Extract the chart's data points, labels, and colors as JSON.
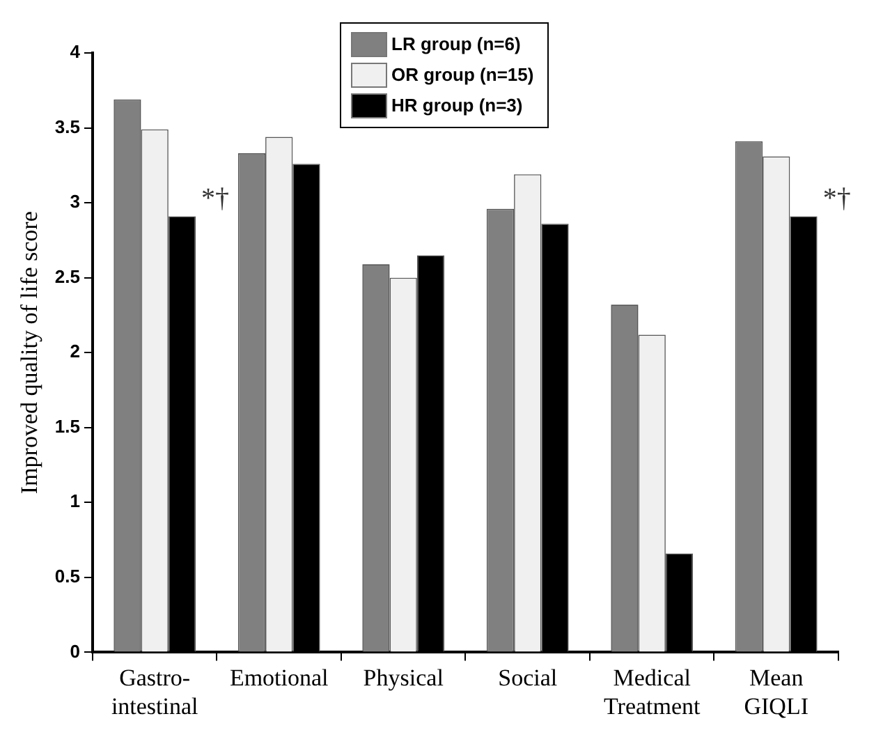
{
  "chart_data": {
    "type": "bar",
    "ylabel": "Improved quality of life score",
    "categories": [
      "Gastro- intestinal",
      "Emotional",
      "Physical",
      "Social",
      "Medical Treatment",
      "Mean GIQLI"
    ],
    "series": [
      {
        "name": "LR group (n=6)",
        "color": "#808080",
        "values": [
          3.69,
          3.33,
          2.59,
          2.96,
          2.32,
          3.41
        ]
      },
      {
        "name": "OR group (n=15)",
        "color": "#f0f0f0",
        "values": [
          3.49,
          3.44,
          2.5,
          3.19,
          2.12,
          3.31
        ]
      },
      {
        "name": "HR group (n=3)",
        "color": "#000000",
        "values": [
          2.91,
          3.26,
          2.65,
          2.86,
          0.66,
          2.91
        ]
      }
    ],
    "ylim": [
      0,
      4
    ],
    "yticks": [
      0,
      0.5,
      1,
      1.5,
      2,
      2.5,
      3,
      3.5,
      4
    ],
    "annotations": [
      "*†",
      "*†"
    ],
    "grid": false,
    "legend": "top"
  }
}
